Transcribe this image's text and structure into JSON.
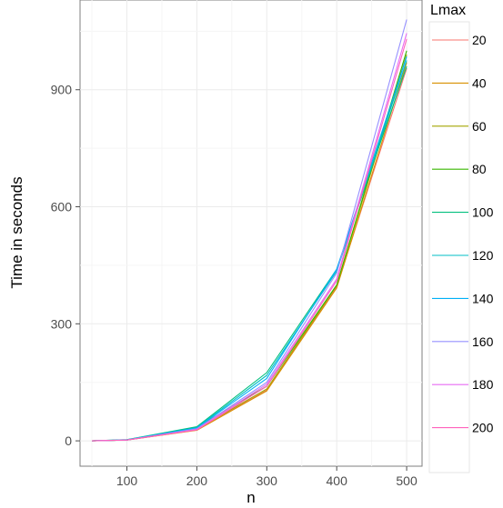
{
  "chart_data": {
    "type": "line",
    "title": "",
    "xlabel": "n",
    "ylabel": "Time in seconds",
    "xlim": [
      33,
      522
    ],
    "ylim": [
      -65,
      1130
    ],
    "x_ticks": [
      100,
      200,
      300,
      400,
      500
    ],
    "y_ticks": [
      0,
      300,
      600,
      900
    ],
    "grid": true,
    "legend": {
      "title": "Lmax",
      "position": "right"
    },
    "x": [
      50,
      100,
      200,
      300,
      400,
      500
    ],
    "series": [
      {
        "name": "20",
        "color": "#F8766D",
        "values": [
          0,
          2,
          28,
          130,
          395,
          955
        ]
      },
      {
        "name": "40",
        "color": "#D89000",
        "values": [
          0,
          2,
          27,
          128,
          392,
          970
        ]
      },
      {
        "name": "60",
        "color": "#A3A500",
        "values": [
          0,
          2,
          30,
          133,
          398,
          990
        ]
      },
      {
        "name": "80",
        "color": "#39B600",
        "values": [
          0,
          2,
          35,
          140,
          400,
          1000
        ]
      },
      {
        "name": "100",
        "color": "#00BF7D",
        "values": [
          0,
          3,
          36,
          175,
          440,
          960
        ]
      },
      {
        "name": "120",
        "color": "#00BFC4",
        "values": [
          0,
          3,
          34,
          168,
          435,
          975
        ]
      },
      {
        "name": "140",
        "color": "#00B0F6",
        "values": [
          0,
          2,
          33,
          160,
          440,
          985
        ]
      },
      {
        "name": "160",
        "color": "#9590FF",
        "values": [
          0,
          2,
          31,
          150,
          430,
          1080
        ]
      },
      {
        "name": "180",
        "color": "#E76BF3",
        "values": [
          0,
          2,
          29,
          145,
          415,
          1045
        ]
      },
      {
        "name": "200",
        "color": "#FF62BC",
        "values": [
          0,
          2,
          28,
          140,
          410,
          1030
        ]
      }
    ]
  }
}
